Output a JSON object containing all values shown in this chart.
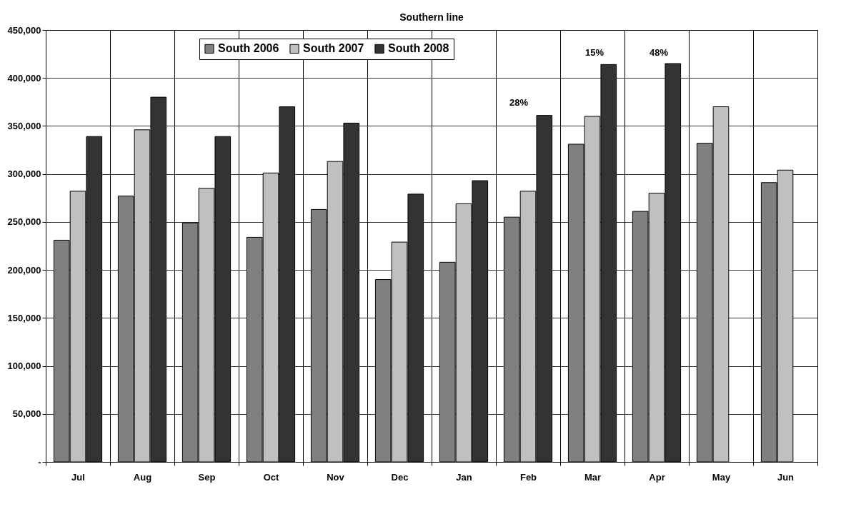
{
  "chart_data": {
    "type": "bar",
    "title": "Southern line",
    "categories": [
      "Jul",
      "Aug",
      "Sep",
      "Oct",
      "Nov",
      "Dec",
      "Jan",
      "Feb",
      "Mar",
      "Apr",
      "May",
      "Jun"
    ],
    "series": [
      {
        "name": "South 2006",
        "color": "#808080",
        "values": [
          231000,
          277000,
          249000,
          234000,
          263000,
          190000,
          208000,
          255000,
          331000,
          261000,
          332000,
          291000
        ]
      },
      {
        "name": "South 2007",
        "color": "#c0c0c0",
        "values": [
          282000,
          346000,
          285000,
          301000,
          313000,
          229000,
          269000,
          282000,
          360000,
          280000,
          370000,
          304000
        ]
      },
      {
        "name": "South 2008",
        "color": "#333333",
        "values": [
          339000,
          380000,
          339000,
          370000,
          353000,
          279000,
          293000,
          361000,
          414000,
          415000,
          null,
          null
        ]
      }
    ],
    "ylim": [
      0,
      450000
    ],
    "yticks": [
      {
        "value": 0,
        "label": "-"
      },
      {
        "value": 50000,
        "label": "50,000"
      },
      {
        "value": 100000,
        "label": "100,000"
      },
      {
        "value": 150000,
        "label": "150,000"
      },
      {
        "value": 200000,
        "label": "200,000"
      },
      {
        "value": 250000,
        "label": "250,000"
      },
      {
        "value": 300000,
        "label": "300,000"
      },
      {
        "value": 350000,
        "label": "350,000"
      },
      {
        "value": 400000,
        "label": "400,000"
      },
      {
        "value": 450000,
        "label": "450,000"
      }
    ],
    "annotations": [
      "28%",
      "15%",
      "48%"
    ],
    "grid": true,
    "legend": "top"
  }
}
